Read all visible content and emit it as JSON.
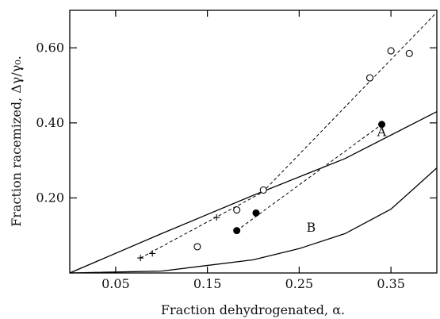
{
  "chart_data": {
    "type": "scatter",
    "title": "",
    "xlabel": "Fraction dehydrogenated, α.",
    "ylabel": "Fraction racemized, Δγ/γ₀.",
    "xlim": [
      0.0,
      0.4
    ],
    "ylim": [
      0.0,
      0.7
    ],
    "x_ticks": [
      0.05,
      0.15,
      0.25,
      0.35
    ],
    "x_tick_labels": [
      "0.05",
      "0.15",
      "0.25",
      "0.35"
    ],
    "y_ticks": [
      0.2,
      0.4,
      0.6
    ],
    "y_tick_labels": [
      "0.20",
      "0.40",
      "0.60"
    ],
    "grid": false,
    "series": [
      {
        "marker": "open-circle",
        "fit": "dashed",
        "x": [
          0.139,
          0.182,
          0.211,
          0.327,
          0.35,
          0.37
        ],
        "y": [
          0.07,
          0.168,
          0.221,
          0.52,
          0.592,
          0.585
        ],
        "fit_line": {
          "x": [
            0.21,
            0.398
          ],
          "y": [
            0.215,
            0.69
          ]
        }
      },
      {
        "marker": "filled-circle",
        "fit": "dashed",
        "x": [
          0.182,
          0.203,
          0.34
        ],
        "y": [
          0.113,
          0.16,
          0.396
        ],
        "fit_line": {
          "x": [
            0.182,
            0.34
          ],
          "y": [
            0.113,
            0.396
          ]
        }
      },
      {
        "marker": "plus",
        "fit": "dashed",
        "x": [
          0.077,
          0.09,
          0.16
        ],
        "y": [
          0.04,
          0.052,
          0.148
        ],
        "fit_line": {
          "x": [
            0.077,
            0.21
          ],
          "y": [
            0.04,
            0.215
          ]
        }
      }
    ],
    "curves": [
      {
        "name": "A",
        "label_x": 0.34,
        "label_y": 0.365,
        "x": [
          0.0,
          0.1,
          0.2,
          0.3,
          0.4
        ],
        "y": [
          0.0,
          0.105,
          0.207,
          0.305,
          0.43
        ]
      },
      {
        "name": "B",
        "label_x": 0.263,
        "label_y": 0.11,
        "x": [
          0.0,
          0.1,
          0.2,
          0.25,
          0.3,
          0.35,
          0.4
        ],
        "y": [
          0.0,
          0.005,
          0.035,
          0.065,
          0.105,
          0.17,
          0.28
        ]
      }
    ]
  }
}
